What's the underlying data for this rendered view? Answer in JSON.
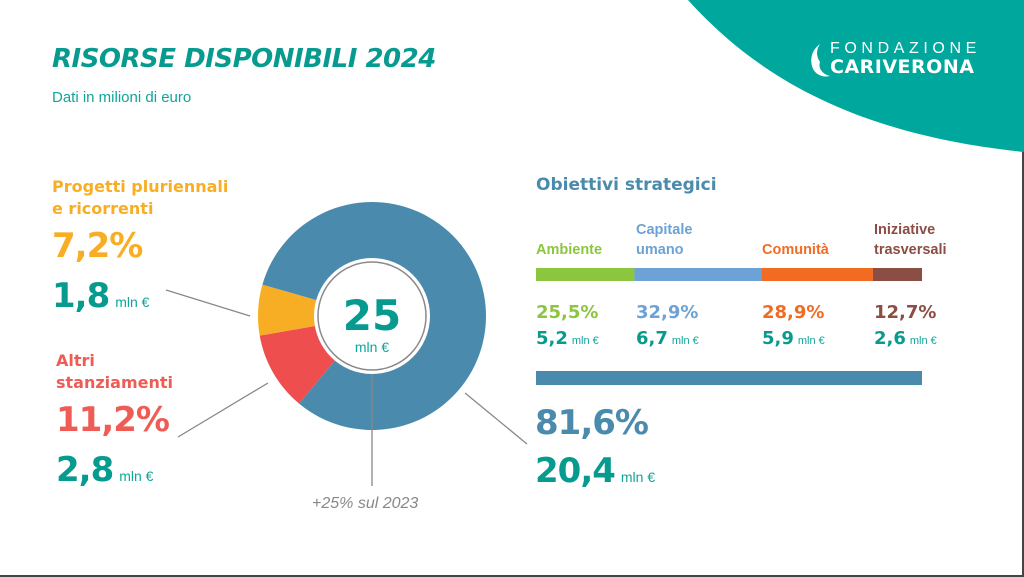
{
  "header": {
    "title": "RISORSE DISPONIBILI 2024",
    "subtitle": "Dati in milioni di euro"
  },
  "logo": {
    "line1": "FONDAZIONE",
    "line2": "CARIVERONA"
  },
  "colors": {
    "brand_teal": "#00a79c",
    "title_teal": "#079b90",
    "blue": "#4a8bad",
    "yellow": "#f8ae24",
    "red": "#ef4e4f",
    "ambiente": "#8cc63f",
    "capitale_umano": "#6ca2d6",
    "comunita": "#f26b23",
    "iniziative": "#8b4d44"
  },
  "chart_data": [
    {
      "type": "pie",
      "variant": "donut",
      "title": "Risorse disponibili 2024",
      "center_value": "25",
      "center_unit": "mln €",
      "total": 25,
      "unit": "mln €",
      "note": "+25% sul 2023",
      "slices": [
        {
          "name": "Obiettivi strategici",
          "percent": 81.6,
          "percent_label": "81,6%",
          "value": 20.4,
          "value_label": "20,4",
          "unit": "mln €",
          "color": "#4a8bad"
        },
        {
          "name": "Progetti pluriennali e ricorrenti",
          "label_line1": "Progetti pluriennali",
          "label_line2": "e ricorrenti",
          "percent": 7.2,
          "percent_label": "7,2%",
          "value": 1.8,
          "value_label": "1,8",
          "unit": "mln €",
          "color": "#f8ae24"
        },
        {
          "name": "Altri stanziamenti",
          "label_line1": "Altri",
          "label_line2": "stanziamenti",
          "percent": 11.2,
          "percent_label": "11,2%",
          "value": 2.8,
          "value_label": "2,8",
          "unit": "mln €",
          "color": "#ef4e4f"
        }
      ]
    },
    {
      "type": "bar",
      "variant": "stacked-horizontal",
      "title": "Obiettivi strategici",
      "unit": "mln €",
      "categories": [
        {
          "line1": "",
          "line2": "Ambiente",
          "percent": 25.5,
          "percent_label": "25,5%",
          "value": 5.2,
          "value_label": "5,2",
          "color": "#8cc63f"
        },
        {
          "line1": "Capitale",
          "line2": "umano",
          "percent": 32.9,
          "percent_label": "32,9%",
          "value": 6.7,
          "value_label": "6,7",
          "color": "#6ca2d6"
        },
        {
          "line1": "",
          "line2": "Comunità",
          "percent": 28.9,
          "percent_label": "28,9%",
          "value": 5.9,
          "value_label": "5,9",
          "color": "#f26b23"
        },
        {
          "line1": "Iniziative",
          "line2": "trasversali",
          "percent": 12.7,
          "percent_label": "12,7%",
          "value": 2.6,
          "value_label": "2,6",
          "color": "#8b4d44"
        }
      ],
      "total_bar": {
        "percent": 100,
        "color": "#4a8bad"
      }
    }
  ]
}
